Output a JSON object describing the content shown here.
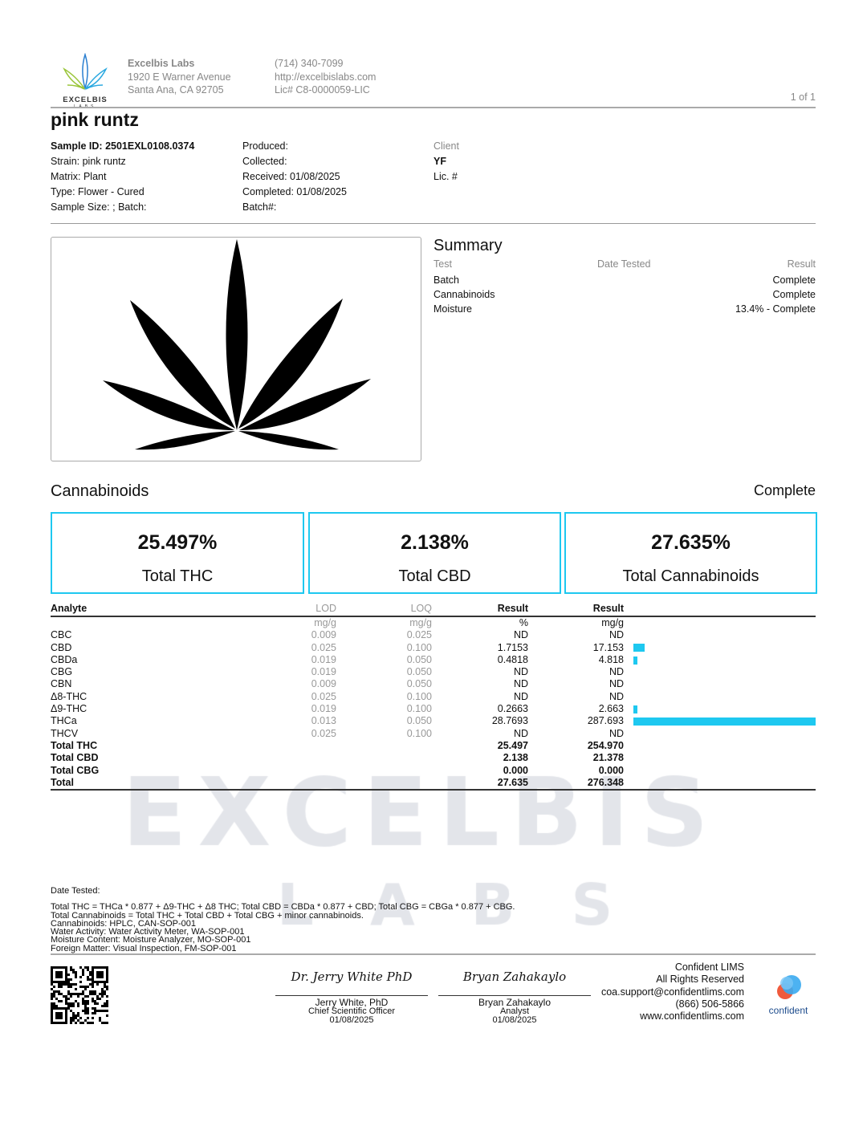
{
  "lab": {
    "name": "Excelbis Labs",
    "address1": "1920 E Warner Avenue",
    "address2": "Santa Ana, CA 92705",
    "phone": "(714) 340-7099",
    "url": "http://excelbislabs.com",
    "license": "Lic# C8-0000059-LIC",
    "logo_text": "EXCELBIS",
    "logo_sub": "LABS",
    "page": "1 of 1",
    "watermark": "EXCELBIS",
    "watermark_sub": "LABS"
  },
  "sample": {
    "title": "pink runtz",
    "id": "Sample ID: 2501EXL0108.0374",
    "strain": "Strain: pink runtz",
    "matrix": "Matrix: Plant",
    "type": "Type: Flower - Cured",
    "size": "Sample Size: ; Batch:",
    "produced": "Produced:",
    "collected": "Collected:",
    "received": "Received: 01/08/2025",
    "completed": "Completed: 01/08/2025",
    "batch": "Batch#:",
    "client_label": "Client",
    "client": "YF",
    "client_lic": "Lic. #"
  },
  "summary": {
    "title": "Summary",
    "headers": [
      "Test",
      "Date Tested",
      "Result"
    ],
    "rows": [
      {
        "test": "Batch",
        "result": "Complete"
      },
      {
        "test": "Cannabinoids",
        "result": "Complete"
      },
      {
        "test": "Moisture",
        "result": "13.4% - Complete"
      }
    ]
  },
  "cannabinoids": {
    "title": "Cannabinoids",
    "status": "Complete",
    "boxes": [
      {
        "value": "25.497%",
        "label": "Total THC"
      },
      {
        "value": "2.138%",
        "label": "Total CBD"
      },
      {
        "value": "27.635%",
        "label": "Total Cannabinoids"
      }
    ],
    "headers": [
      "Analyte",
      "LOD",
      "LOQ",
      "Result",
      "Result"
    ],
    "units": [
      "mg/g",
      "mg/g",
      "%",
      "mg/g"
    ],
    "bar_color": "#1ec8f0",
    "rows": [
      {
        "a": "CBC",
        "lod": "0.009",
        "loq": "0.025",
        "pct": "ND",
        "mg": "ND",
        "bar": 0
      },
      {
        "a": "CBD",
        "lod": "0.025",
        "loq": "0.100",
        "pct": "1.7153",
        "mg": "17.153",
        "bar": 17.153
      },
      {
        "a": "CBDa",
        "lod": "0.019",
        "loq": "0.050",
        "pct": "0.4818",
        "mg": "4.818",
        "bar": 4.818
      },
      {
        "a": "CBG",
        "lod": "0.019",
        "loq": "0.050",
        "pct": "ND",
        "mg": "ND",
        "bar": 0
      },
      {
        "a": "CBN",
        "lod": "0.009",
        "loq": "0.050",
        "pct": "ND",
        "mg": "ND",
        "bar": 0
      },
      {
        "a": "Δ8-THC",
        "lod": "0.025",
        "loq": "0.100",
        "pct": "ND",
        "mg": "ND",
        "bar": 0
      },
      {
        "a": "Δ9-THC",
        "lod": "0.019",
        "loq": "0.100",
        "pct": "0.2663",
        "mg": "2.663",
        "bar": 2.663
      },
      {
        "a": "THCa",
        "lod": "0.013",
        "loq": "0.050",
        "pct": "28.7693",
        "mg": "287.693",
        "bar": 287.693
      },
      {
        "a": "THCV",
        "lod": "0.025",
        "loq": "0.100",
        "pct": "ND",
        "mg": "ND",
        "bar": 0
      }
    ],
    "totals": [
      {
        "a": "Total THC",
        "pct": "25.497",
        "mg": "254.970"
      },
      {
        "a": "Total CBD",
        "pct": "2.138",
        "mg": "21.378"
      },
      {
        "a": "Total CBG",
        "pct": "0.000",
        "mg": "0.000"
      },
      {
        "a": "Total",
        "pct": "27.635",
        "mg": "276.348"
      }
    ]
  },
  "notes": {
    "date_tested": "Date Tested:",
    "lines": [
      "Total THC = THCa * 0.877 + Δ9-THC + Δ8 THC; Total CBD = CBDa * 0.877 + CBD; Total CBG = CBGa * 0.877 + CBG.",
      "Total Cannabinoids = Total THC + Total CBD + Total CBG + minor cannabinoids.",
      "Cannabinoids: HPLC, CAN-SOP-001",
      "Water Activity: Water Activity Meter, WA-SOP-001",
      "Moisture Content: Moisture Analyzer, MO-SOP-001",
      "Foreign Matter: Visual Inspection, FM-SOP-001"
    ]
  },
  "signatures": [
    {
      "script": "Dr. Jerry White PhD",
      "name": "Jerry White, PhD",
      "title": "Chief Scientific Officer",
      "date": "01/08/2025"
    },
    {
      "script": "Bryan Zahakaylo",
      "name": "Bryan Zahakaylo",
      "title": "Analyst",
      "date": "01/08/2025"
    }
  ],
  "lims": {
    "lines": [
      "Confident LIMS",
      "All Rights Reserved",
      "coa.support@confidentlims.com",
      "(866) 506-5866",
      "www.confidentlims.com"
    ],
    "logo_text": "confident"
  }
}
